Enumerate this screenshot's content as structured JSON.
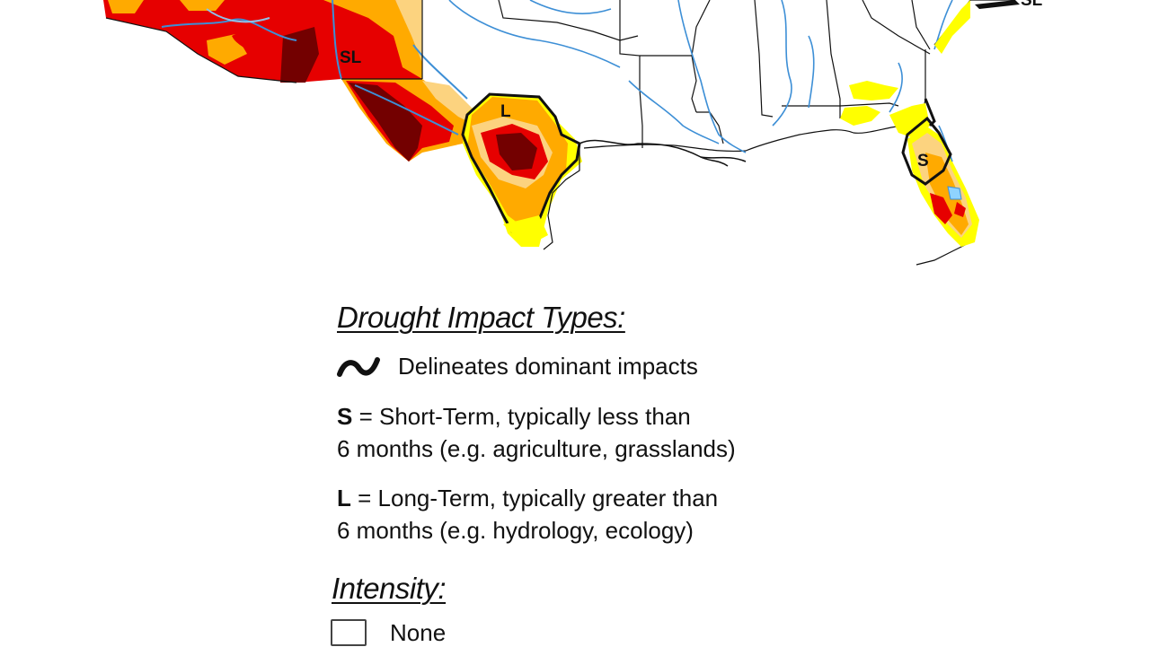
{
  "map": {
    "region_labels": [
      {
        "id": "sl-southwest",
        "text": "SL"
      },
      {
        "id": "l-texas",
        "text": "L"
      },
      {
        "id": "s-florida",
        "text": "S"
      },
      {
        "id": "sl-east-cut",
        "text": "SL"
      }
    ],
    "colors": {
      "none": "#ffffff",
      "d0": "#ffff00",
      "d1": "#fcd37f",
      "d2": "#ffaa00",
      "d3": "#e60000",
      "d4": "#730000",
      "water": "#3d8fd6",
      "lake": "#8fd3ff",
      "border": "#111111"
    }
  },
  "legend": {
    "impact_heading": "Drought Impact Types:",
    "delineates_text": "Delineates dominant impacts",
    "short_term": {
      "letter": "S",
      "line1": " = Short-Term, typically less than",
      "line2": "6 months (e.g. agriculture, grasslands)"
    },
    "long_term": {
      "letter": "L",
      "line1": " = Long-Term, typically greater than",
      "line2": "6 months (e.g. hydrology, ecology)"
    },
    "intensity_heading": "Intensity:",
    "intensity_items": [
      {
        "label": "None",
        "color": "#ffffff"
      }
    ]
  }
}
